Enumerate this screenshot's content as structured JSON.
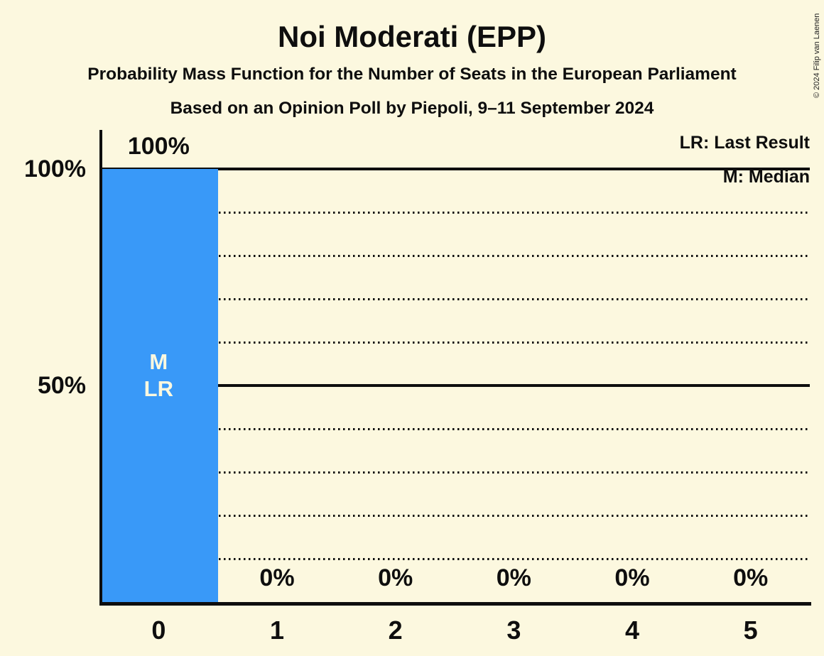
{
  "header": {
    "title": "Noi Moderati (EPP)",
    "subtitle_line1": "Probability Mass Function for the Number of Seats in the European Parliament",
    "subtitle_line2": "Based on an Opinion Poll by Piepoli, 9–11 September 2024"
  },
  "legend": {
    "last_result_label": "LR: Last Result",
    "median_label": "M: Median"
  },
  "copyright_notice": "© 2024 Filip van Laenen",
  "colors": {
    "background": "#FCF8DF",
    "bar_fill": "#3999F8",
    "text": "#0E0E0E",
    "bar_annotation_text": "#FCF8DF"
  },
  "chart_data": {
    "type": "bar",
    "title": "Noi Moderati (EPP)",
    "categories": [
      "0",
      "1",
      "2",
      "3",
      "4",
      "5"
    ],
    "values": [
      100,
      0,
      0,
      0,
      0,
      0
    ],
    "value_labels": [
      "100%",
      "0%",
      "0%",
      "0%",
      "0%",
      "0%"
    ],
    "ylim": [
      0,
      100
    ],
    "y_axis_ticks": [
      {
        "label": "100%",
        "value": 100
      },
      {
        "label": "50%",
        "value": 50
      }
    ],
    "gridlines_solid": [
      50,
      100
    ],
    "gridlines_dotted": [
      10,
      20,
      30,
      40,
      60,
      70,
      80,
      90
    ],
    "annotations": [
      {
        "category_index": 0,
        "lines": [
          "M",
          "LR"
        ]
      }
    ],
    "legend_position": "top-right",
    "grid": "horizontal"
  }
}
